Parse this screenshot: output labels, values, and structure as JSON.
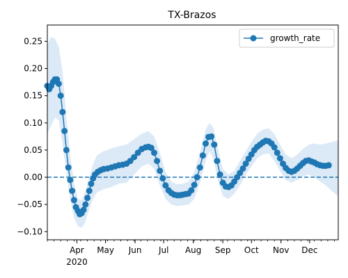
{
  "chart_data": {
    "type": "line",
    "title": "TX-Brazos",
    "xlabel": "",
    "ylabel": "",
    "x_axis": "date",
    "x_range": [
      "2020-03-01",
      "2020-12-31"
    ],
    "ylim": [
      -0.115,
      0.28
    ],
    "yticks": [
      -0.1,
      -0.05,
      0.0,
      0.05,
      0.1,
      0.15,
      0.2,
      0.25
    ],
    "ytick_labels": [
      "−0.10",
      "−0.05",
      "0.00",
      "0.05",
      "0.10",
      "0.15",
      "0.20",
      "0.25"
    ],
    "month_ticks": [
      {
        "date": "2020-04-01",
        "label": "Apr"
      },
      {
        "date": "2020-05-01",
        "label": "May"
      },
      {
        "date": "2020-06-01",
        "label": "Jun"
      },
      {
        "date": "2020-07-01",
        "label": "Jul"
      },
      {
        "date": "2020-08-01",
        "label": "Aug"
      },
      {
        "date": "2020-09-01",
        "label": "Sep"
      },
      {
        "date": "2020-10-01",
        "label": "Oct"
      },
      {
        "date": "2020-11-01",
        "label": "Nov"
      },
      {
        "date": "2020-12-01",
        "label": "Dec"
      }
    ],
    "year_label": "2020",
    "legend": {
      "position": "top-right"
    },
    "grid": false,
    "reference_line": {
      "y": 0,
      "style": "dashed",
      "color": "#1f77b4"
    },
    "colors": {
      "series": "#1f77b4",
      "band": "#dce9f6"
    },
    "series": [
      {
        "name": "growth_rate",
        "marker": "circle",
        "points": [
          [
            "2020-03-01",
            0.168
          ],
          [
            "2020-03-03",
            0.162
          ],
          [
            "2020-03-05",
            0.168
          ],
          [
            "2020-03-07",
            0.175
          ],
          [
            "2020-03-09",
            0.18
          ],
          [
            "2020-03-11",
            0.18
          ],
          [
            "2020-03-13",
            0.172
          ],
          [
            "2020-03-15",
            0.15
          ],
          [
            "2020-03-17",
            0.12
          ],
          [
            "2020-03-19",
            0.085
          ],
          [
            "2020-03-21",
            0.05
          ],
          [
            "2020-03-23",
            0.018
          ],
          [
            "2020-03-25",
            -0.005
          ],
          [
            "2020-03-27",
            -0.025
          ],
          [
            "2020-03-29",
            -0.042
          ],
          [
            "2020-03-31",
            -0.055
          ],
          [
            "2020-04-02",
            -0.062
          ],
          [
            "2020-04-04",
            -0.068
          ],
          [
            "2020-04-06",
            -0.066
          ],
          [
            "2020-04-08",
            -0.06
          ],
          [
            "2020-04-10",
            -0.05
          ],
          [
            "2020-04-12",
            -0.038
          ],
          [
            "2020-04-14",
            -0.025
          ],
          [
            "2020-04-16",
            -0.012
          ],
          [
            "2020-04-18",
            -0.002
          ],
          [
            "2020-04-20",
            0.005
          ],
          [
            "2020-04-23",
            0.01
          ],
          [
            "2020-04-26",
            0.013
          ],
          [
            "2020-04-29",
            0.015
          ],
          [
            "2020-05-03",
            0.016
          ],
          [
            "2020-05-07",
            0.018
          ],
          [
            "2020-05-11",
            0.02
          ],
          [
            "2020-05-15",
            0.022
          ],
          [
            "2020-05-19",
            0.023
          ],
          [
            "2020-05-23",
            0.025
          ],
          [
            "2020-05-27",
            0.03
          ],
          [
            "2020-05-31",
            0.037
          ],
          [
            "2020-06-04",
            0.045
          ],
          [
            "2020-06-08",
            0.052
          ],
          [
            "2020-06-12",
            0.055
          ],
          [
            "2020-06-15",
            0.056
          ],
          [
            "2020-06-18",
            0.054
          ],
          [
            "2020-06-21",
            0.045
          ],
          [
            "2020-06-24",
            0.03
          ],
          [
            "2020-06-27",
            0.012
          ],
          [
            "2020-06-30",
            -0.002
          ],
          [
            "2020-07-03",
            -0.015
          ],
          [
            "2020-07-06",
            -0.024
          ],
          [
            "2020-07-09",
            -0.029
          ],
          [
            "2020-07-12",
            -0.032
          ],
          [
            "2020-07-15",
            -0.033
          ],
          [
            "2020-07-18",
            -0.033
          ],
          [
            "2020-07-21",
            -0.032
          ],
          [
            "2020-07-24",
            -0.031
          ],
          [
            "2020-07-27",
            -0.03
          ],
          [
            "2020-07-30",
            -0.024
          ],
          [
            "2020-08-02",
            -0.014
          ],
          [
            "2020-08-05",
            0.0
          ],
          [
            "2020-08-08",
            0.018
          ],
          [
            "2020-08-11",
            0.04
          ],
          [
            "2020-08-14",
            0.062
          ],
          [
            "2020-08-17",
            0.074
          ],
          [
            "2020-08-20",
            0.075
          ],
          [
            "2020-08-23",
            0.06
          ],
          [
            "2020-08-26",
            0.03
          ],
          [
            "2020-08-29",
            0.005
          ],
          [
            "2020-09-01",
            -0.01
          ],
          [
            "2020-09-04",
            -0.017
          ],
          [
            "2020-09-07",
            -0.018
          ],
          [
            "2020-09-10",
            -0.015
          ],
          [
            "2020-09-13",
            -0.008
          ],
          [
            "2020-09-16",
            0.0
          ],
          [
            "2020-09-19",
            0.008
          ],
          [
            "2020-09-22",
            0.016
          ],
          [
            "2020-09-25",
            0.025
          ],
          [
            "2020-09-28",
            0.034
          ],
          [
            "2020-10-01",
            0.042
          ],
          [
            "2020-10-04",
            0.05
          ],
          [
            "2020-10-07",
            0.056
          ],
          [
            "2020-10-10",
            0.06
          ],
          [
            "2020-10-13",
            0.064
          ],
          [
            "2020-10-16",
            0.067
          ],
          [
            "2020-10-19",
            0.066
          ],
          [
            "2020-10-22",
            0.062
          ],
          [
            "2020-10-25",
            0.055
          ],
          [
            "2020-10-28",
            0.045
          ],
          [
            "2020-10-31",
            0.035
          ],
          [
            "2020-11-03",
            0.025
          ],
          [
            "2020-11-06",
            0.017
          ],
          [
            "2020-11-09",
            0.012
          ],
          [
            "2020-11-12",
            0.01
          ],
          [
            "2020-11-15",
            0.012
          ],
          [
            "2020-11-18",
            0.016
          ],
          [
            "2020-11-21",
            0.021
          ],
          [
            "2020-11-24",
            0.026
          ],
          [
            "2020-11-27",
            0.03
          ],
          [
            "2020-11-30",
            0.031
          ],
          [
            "2020-12-03",
            0.029
          ],
          [
            "2020-12-06",
            0.027
          ],
          [
            "2020-12-09",
            0.024
          ],
          [
            "2020-12-12",
            0.022
          ],
          [
            "2020-12-15",
            0.021
          ],
          [
            "2020-12-18",
            0.021
          ],
          [
            "2020-12-21",
            0.022
          ]
        ]
      }
    ],
    "confidence_band": [
      [
        "2020-03-01",
        0.08,
        0.245
      ],
      [
        "2020-03-05",
        0.095,
        0.258
      ],
      [
        "2020-03-09",
        0.11,
        0.255
      ],
      [
        "2020-03-13",
        0.105,
        0.24
      ],
      [
        "2020-03-17",
        0.06,
        0.195
      ],
      [
        "2020-03-21",
        0.01,
        0.11
      ],
      [
        "2020-03-25",
        -0.04,
        0.04
      ],
      [
        "2020-03-29",
        -0.075,
        -0.01
      ],
      [
        "2020-04-02",
        -0.09,
        -0.04
      ],
      [
        "2020-04-06",
        -0.093,
        -0.042
      ],
      [
        "2020-04-10",
        -0.082,
        -0.025
      ],
      [
        "2020-04-14",
        -0.058,
        0.0
      ],
      [
        "2020-04-18",
        -0.04,
        0.025
      ],
      [
        "2020-04-22",
        -0.028,
        0.04
      ],
      [
        "2020-04-29",
        -0.022,
        0.048
      ],
      [
        "2020-05-07",
        -0.018,
        0.053
      ],
      [
        "2020-05-15",
        -0.012,
        0.057
      ],
      [
        "2020-05-23",
        -0.01,
        0.06
      ],
      [
        "2020-05-31",
        0.005,
        0.07
      ],
      [
        "2020-06-08",
        0.02,
        0.08
      ],
      [
        "2020-06-15",
        0.025,
        0.085
      ],
      [
        "2020-06-21",
        0.015,
        0.075
      ],
      [
        "2020-06-27",
        -0.015,
        0.045
      ],
      [
        "2020-07-03",
        -0.04,
        0.01
      ],
      [
        "2020-07-09",
        -0.05,
        -0.008
      ],
      [
        "2020-07-15",
        -0.053,
        -0.013
      ],
      [
        "2020-07-21",
        -0.052,
        -0.012
      ],
      [
        "2020-07-27",
        -0.05,
        -0.008
      ],
      [
        "2020-08-02",
        -0.04,
        0.01
      ],
      [
        "2020-08-08",
        -0.01,
        0.045
      ],
      [
        "2020-08-14",
        0.03,
        0.088
      ],
      [
        "2020-08-18",
        0.048,
        0.1
      ],
      [
        "2020-08-22",
        0.035,
        0.092
      ],
      [
        "2020-08-26",
        0.0,
        0.06
      ],
      [
        "2020-09-01",
        -0.035,
        0.015
      ],
      [
        "2020-09-07",
        -0.04,
        0.005
      ],
      [
        "2020-09-13",
        -0.03,
        0.012
      ],
      [
        "2020-09-19",
        -0.015,
        0.03
      ],
      [
        "2020-09-25",
        0.005,
        0.048
      ],
      [
        "2020-10-01",
        0.02,
        0.065
      ],
      [
        "2020-10-07",
        0.035,
        0.08
      ],
      [
        "2020-10-13",
        0.042,
        0.088
      ],
      [
        "2020-10-19",
        0.044,
        0.09
      ],
      [
        "2020-10-25",
        0.03,
        0.08
      ],
      [
        "2020-10-31",
        0.012,
        0.06
      ],
      [
        "2020-11-06",
        -0.005,
        0.042
      ],
      [
        "2020-11-12",
        -0.01,
        0.035
      ],
      [
        "2020-11-18",
        -0.005,
        0.042
      ],
      [
        "2020-11-24",
        0.002,
        0.052
      ],
      [
        "2020-11-30",
        0.005,
        0.06
      ],
      [
        "2020-12-06",
        0.0,
        0.062
      ],
      [
        "2020-12-12",
        -0.008,
        0.06
      ],
      [
        "2020-12-18",
        -0.015,
        0.062
      ],
      [
        "2020-12-24",
        -0.025,
        0.065
      ],
      [
        "2020-12-31",
        -0.035,
        0.068
      ]
    ]
  }
}
